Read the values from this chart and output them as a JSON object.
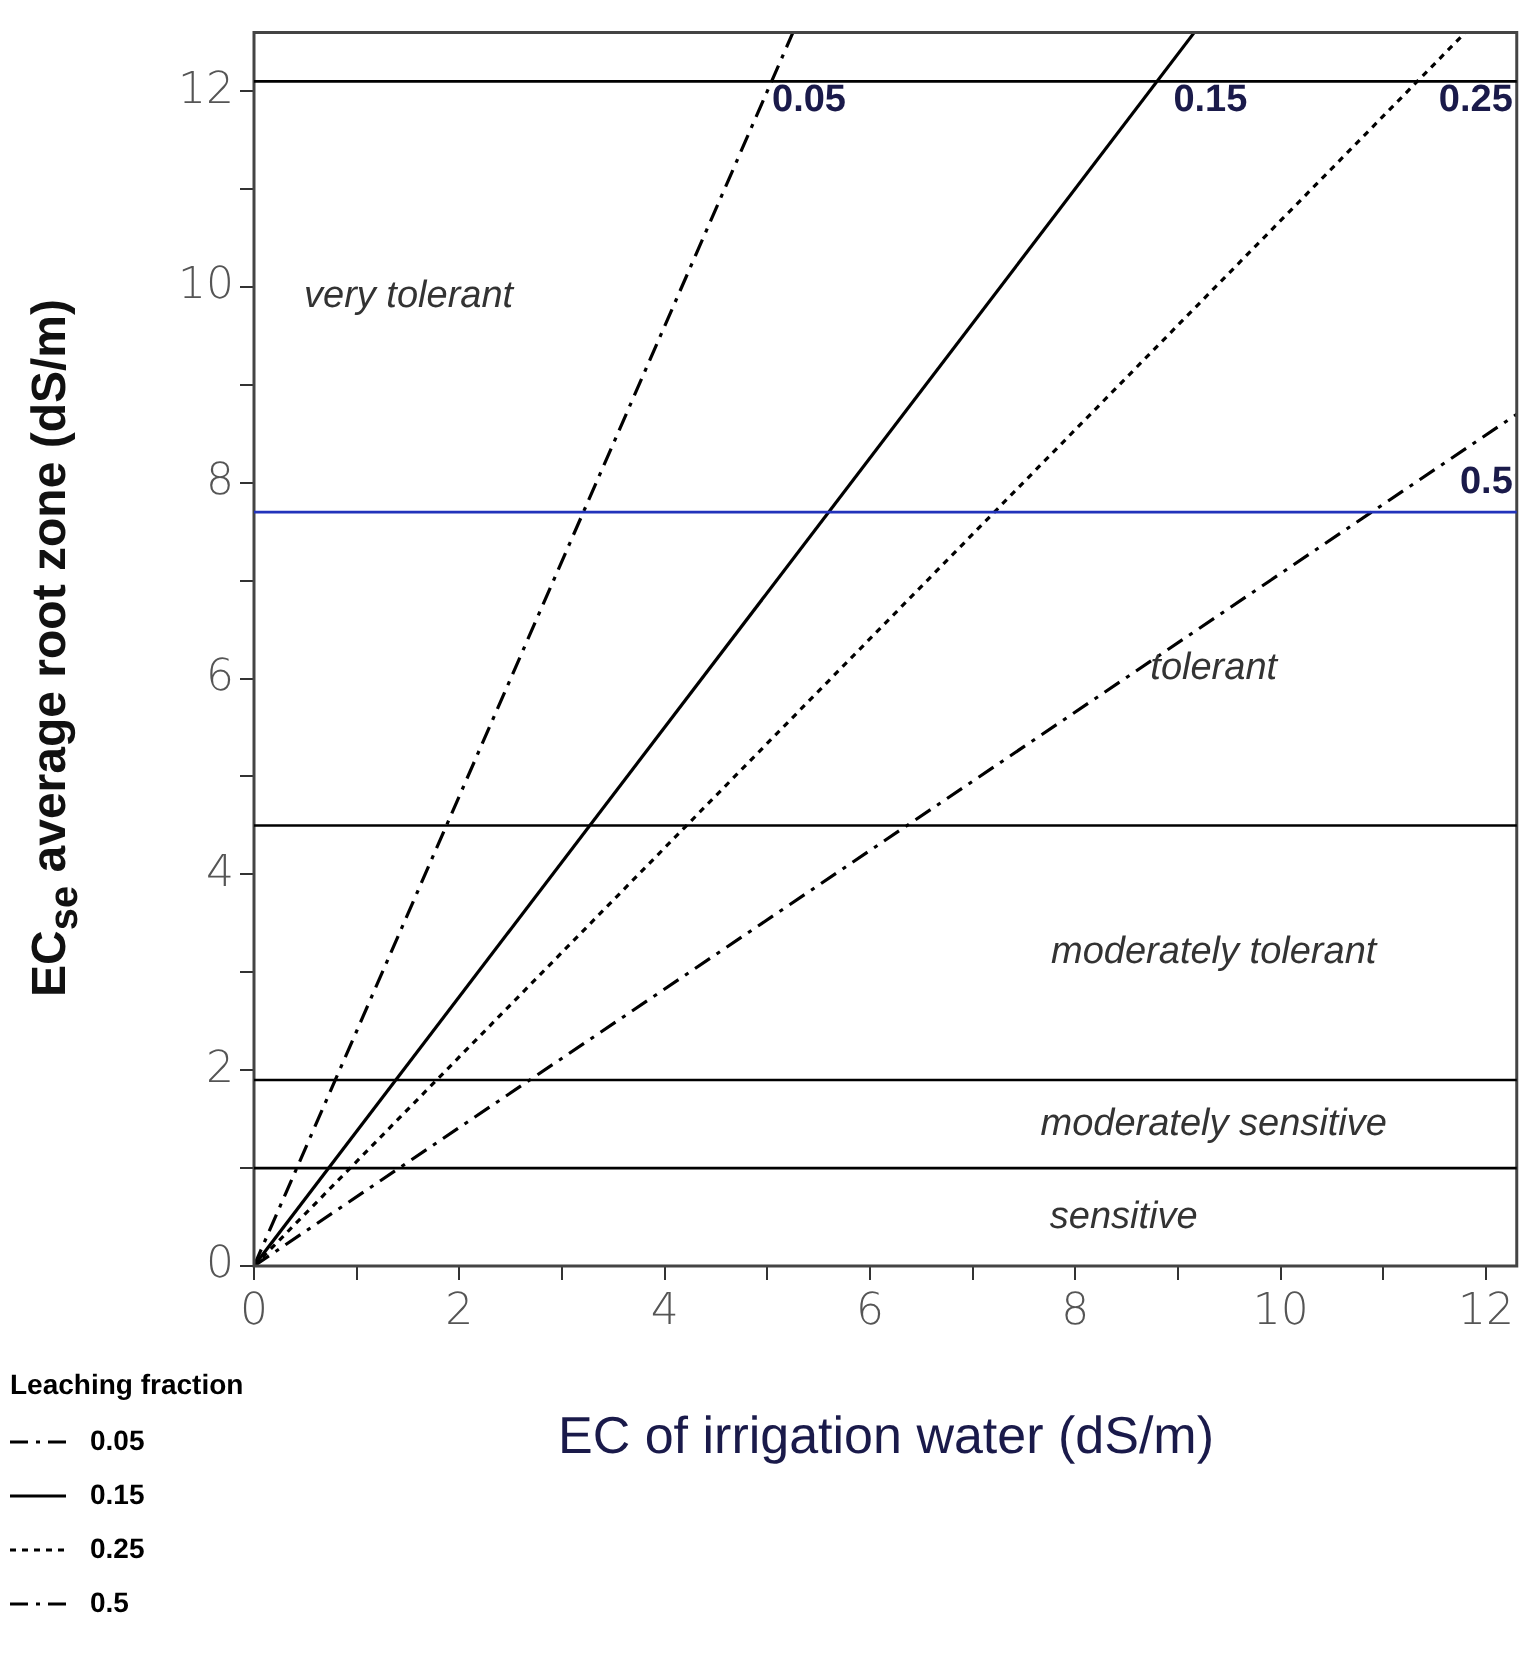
{
  "chart_data": {
    "type": "line",
    "xlabel": "EC of irrigation water (dS/m)",
    "ylabel": "EC$_{se}$ average root zone (dS/m)",
    "legend_title": "Leaching fraction",
    "legend": "bottom left",
    "grid": false,
    "marker": "none",
    "xlim": [
      0,
      12.3
    ],
    "ylim": [
      0,
      12.6
    ],
    "xticks": [
      0,
      {
        "value": 1,
        "label": null
      },
      2,
      {
        "value": 3,
        "label": null
      },
      4,
      {
        "value": 5,
        "label": null
      },
      6,
      {
        "value": 7,
        "label": null
      },
      8,
      {
        "value": 9,
        "label": null
      },
      10,
      {
        "value": 11,
        "label": null
      },
      12
    ],
    "yticks": [
      0,
      {
        "value": 1,
        "label": null
      },
      2,
      {
        "value": 3,
        "label": null
      },
      4,
      {
        "value": 5,
        "label": null
      },
      6,
      {
        "value": 7,
        "label": null
      },
      8,
      {
        "value": 9,
        "label": null
      },
      10,
      {
        "value": 11,
        "label": null
      },
      12
    ],
    "series": [
      {
        "name": "0.05",
        "color": "#000000",
        "line_style": "dashed",
        "x": [
          0,
          5.25
        ],
        "values": [
          0,
          12.6
        ]
      },
      {
        "name": "0.15",
        "color": "#000000",
        "line_style": "solid",
        "x": [
          0,
          9.16
        ],
        "values": [
          0,
          12.6
        ]
      },
      {
        "name": "0.25",
        "color": "#000000",
        "line_style": "dotted",
        "x": [
          0,
          11.8
        ],
        "values": [
          0,
          12.6
        ]
      },
      {
        "name": "0.5",
        "color": "#000000",
        "line_style": "dashed",
        "x": [
          0,
          12.3
        ],
        "values": [
          0,
          8.7
        ]
      }
    ],
    "ref_lines": [
      {
        "axis": "y",
        "value": 12.1,
        "color": "#000000"
      },
      {
        "axis": "y",
        "value": 7.7,
        "color": "#2233bb"
      },
      {
        "axis": "y",
        "value": 4.5,
        "color": "#000000"
      },
      {
        "axis": "y",
        "value": 1.9,
        "color": "#000000"
      },
      {
        "axis": "y",
        "value": 1,
        "color": "#000000"
      }
    ],
    "annotations": [
      "very tolerant",
      "tolerant",
      "moderately tolerant",
      "moderately sensitive",
      "sensitive"
    ]
  }
}
